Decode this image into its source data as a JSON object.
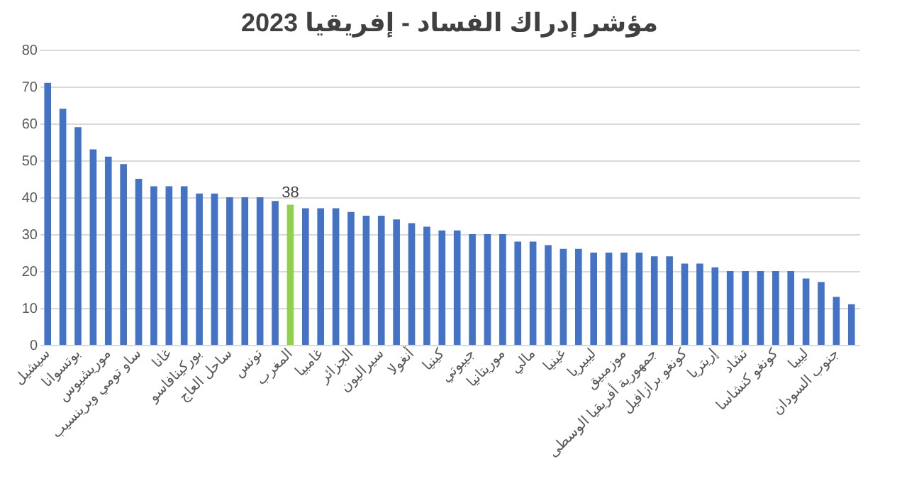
{
  "chart_data": {
    "type": "bar",
    "title": "مؤشر إدراك الفساد - إفريقيا 2023",
    "categories": [
      "سيشيل",
      null,
      "بوتسوانا",
      null,
      "موريشيوس",
      null,
      "ساو تومي وبرينسيب",
      null,
      "غانا",
      null,
      "بوركينافاسو",
      null,
      "ساحل العاج",
      null,
      "تونس",
      null,
      "المغرب",
      null,
      "غامبيا",
      null,
      "الجزائر",
      null,
      "سيراليون",
      null,
      "أنغولا",
      null,
      "كينيا",
      null,
      "جيبوتي",
      null,
      "موريتانيا",
      null,
      "مالي",
      null,
      "غينيا",
      null,
      "ليبيريا",
      null,
      "موزمبيق",
      null,
      "جمهورية أفريقيا الوسطى",
      null,
      "كونغو برازافيل",
      null,
      "إريتريا",
      null,
      "تشاد",
      null,
      "كونغو كنشاسا",
      null,
      "ليبيا",
      null,
      "جنوب السودان",
      null
    ],
    "values": [
      71,
      64,
      59,
      53,
      51,
      49,
      45,
      43,
      43,
      43,
      41,
      41,
      40,
      40,
      40,
      39,
      38,
      37,
      37,
      37,
      36,
      35,
      35,
      34,
      33,
      32,
      31,
      31,
      30,
      30,
      30,
      28,
      28,
      27,
      26,
      26,
      25,
      25,
      25,
      25,
      24,
      24,
      22,
      22,
      21,
      20,
      20,
      20,
      20,
      20,
      18,
      17,
      13,
      11
    ],
    "colors": [
      "#4472c4",
      "#4472c4",
      "#4472c4",
      "#4472c4",
      "#4472c4",
      "#4472c4",
      "#4472c4",
      "#4472c4",
      "#4472c4",
      "#4472c4",
      "#4472c4",
      "#4472c4",
      "#4472c4",
      "#4472c4",
      "#4472c4",
      "#4472c4",
      "#92d050",
      "#4472c4",
      "#4472c4",
      "#4472c4",
      "#4472c4",
      "#4472c4",
      "#4472c4",
      "#4472c4",
      "#4472c4",
      "#4472c4",
      "#4472c4",
      "#4472c4",
      "#4472c4",
      "#4472c4",
      "#4472c4",
      "#4472c4",
      "#4472c4",
      "#4472c4",
      "#4472c4",
      "#4472c4",
      "#4472c4",
      "#4472c4",
      "#4472c4",
      "#4472c4",
      "#4472c4",
      "#4472c4",
      "#4472c4",
      "#4472c4",
      "#4472c4",
      "#4472c4",
      "#4472c4",
      "#4472c4",
      "#4472c4",
      "#4472c4",
      "#4472c4",
      "#4472c4",
      "#4472c4",
      "#4472c4"
    ],
    "value_labels": [
      null,
      null,
      null,
      null,
      null,
      null,
      null,
      null,
      null,
      null,
      null,
      null,
      null,
      null,
      null,
      null,
      "38",
      null,
      null,
      null,
      null,
      null,
      null,
      null,
      null,
      null,
      null,
      null,
      null,
      null,
      null,
      null,
      null,
      null,
      null,
      null,
      null,
      null,
      null,
      null,
      null,
      null,
      null,
      null,
      null,
      null,
      null,
      null,
      null,
      null,
      null,
      null,
      null,
      null
    ],
    "ylim": [
      0,
      80
    ],
    "yticks": [
      0,
      10,
      20,
      30,
      40,
      50,
      60,
      70,
      80
    ],
    "grid": "y"
  }
}
